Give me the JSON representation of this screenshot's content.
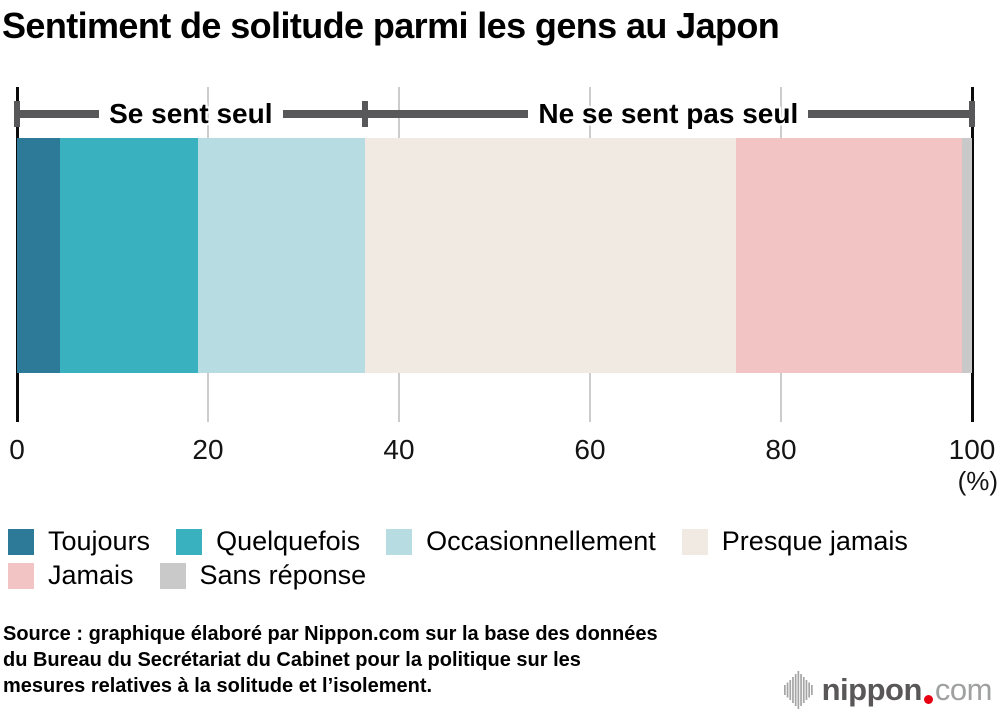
{
  "title": "Sentiment de solitude parmi les gens au Japon",
  "chart_data": {
    "type": "bar",
    "subtype": "horizontal-stacked-100pct",
    "categories": [
      "Toujours",
      "Quelquefois",
      "Occasionnellement",
      "Presque jamais",
      "Jamais",
      "Sans réponse"
    ],
    "values": [
      4.5,
      14.5,
      17.4,
      38.9,
      23.7,
      1.0
    ],
    "colors": [
      "#2c7998",
      "#39b1bf",
      "#b7dce1",
      "#f0eae2",
      "#f2c4c4",
      "#c9c9c9"
    ],
    "xlim": [
      0,
      100
    ],
    "x_ticks": [
      "0",
      "20",
      "40",
      "60",
      "80",
      "100"
    ],
    "x_tick_values": [
      0,
      20,
      40,
      60,
      80,
      100
    ],
    "x_unit_label": "(%)",
    "grid": true,
    "gridline_color": "#cccccc",
    "annotations": [
      {
        "label": "Se sent seul",
        "from": 0,
        "to": 36.4
      },
      {
        "label": "Ne se sent pas seul",
        "from": 36.4,
        "to": 100
      }
    ],
    "bracket_color": "#58585a",
    "legend_position": "bottom"
  },
  "legend": {
    "rows": [
      [
        {
          "label": "Toujours",
          "color": "#2c7998"
        },
        {
          "label": "Quelquefois",
          "color": "#39b1bf"
        },
        {
          "label": "Occasionnellement",
          "color": "#b7dce1"
        },
        {
          "label": "Presque jamais",
          "color": "#f0eae2"
        }
      ],
      [
        {
          "label": "Jamais",
          "color": "#f2c4c4"
        },
        {
          "label": "Sans réponse",
          "color": "#c9c9c9"
        }
      ]
    ]
  },
  "source": {
    "lines": [
      "Source : graphique élaboré par Nippon.com sur la base des données",
      "du Bureau du Secrétariat du Cabinet pour la politique sur les",
      "mesures relatives à la solitude et l’isolement."
    ]
  },
  "logo": {
    "icon": "waveform-icon",
    "name_bold": "nippon",
    "dot": ".",
    "name_light": "com",
    "dot_color": "#e60012"
  }
}
